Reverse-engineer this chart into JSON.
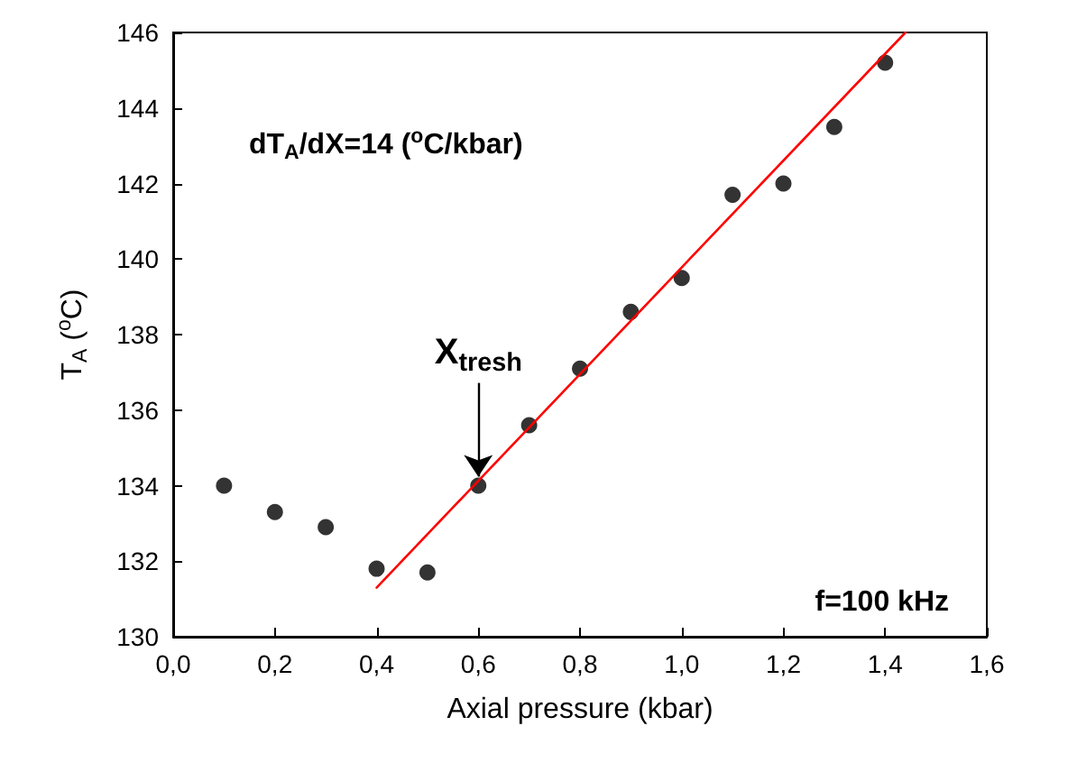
{
  "chart_data": {
    "type": "scatter",
    "xlabel": "Axial pressure (kbar)",
    "ylabel": "T$_{A}$ ($^{o}$C)",
    "xlim": [
      0,
      1.6
    ],
    "ylim": [
      130,
      146
    ],
    "xticks": [
      {
        "value": 0,
        "label": "0,0"
      },
      {
        "value": 0.2,
        "label": "0,2"
      },
      {
        "value": 0.4,
        "label": "0,4"
      },
      {
        "value": 0.6,
        "label": "0,6"
      },
      {
        "value": 0.8,
        "label": "0,8"
      },
      {
        "value": 1.0,
        "label": "1,0"
      },
      {
        "value": 1.2,
        "label": "1,2"
      },
      {
        "value": 1.4,
        "label": "1,4"
      },
      {
        "value": 1.6,
        "label": "1,6"
      }
    ],
    "yticks": [
      130,
      132,
      134,
      136,
      138,
      140,
      142,
      144,
      146
    ],
    "series": [
      {
        "color": "#000000",
        "marker": "circle",
        "x": [
          0.1,
          0.2,
          0.3,
          0.4,
          0.5,
          0.6,
          0.7,
          0.8,
          0.9,
          1.0,
          1.1,
          1.2,
          1.3,
          1.4
        ],
        "values": [
          134.0,
          133.3,
          132.9,
          131.8,
          131.7,
          134.0,
          135.6,
          137.1,
          138.6,
          139.5,
          141.7,
          142.0,
          143.5,
          145.2
        ]
      },
      {
        "type": "line",
        "color": "#ff0000",
        "marker": "none",
        "x": [
          0.4,
          1.44
        ],
        "values": [
          131.3,
          146.0
        ]
      }
    ],
    "annotations": [
      "dT$_{A}$/dX=14 ($^{o}$C/kbar)",
      {
        "text": "X$_{tresh}$",
        "x": 0.6,
        "y": 134.0
      },
      "f=100 kHz"
    ]
  }
}
